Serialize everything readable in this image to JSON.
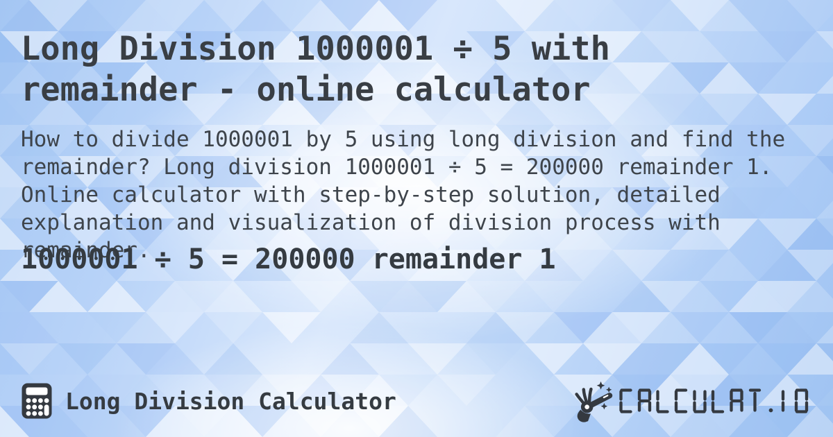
{
  "header": {
    "title": "Long Division 1000001 ÷ 5 with remainder - online calculator"
  },
  "main": {
    "description": "How to divide 1000001 by 5 using long division and find the remainder? Long division 1000001 ÷ 5 = 200000 remainder 1. Online calculator with step-by-step solution, detailed explanation and visualization of division process with remainder.",
    "result": "1000001 ÷ 5 = 200000 remainder 1"
  },
  "footer": {
    "site_label": "Long Division Calculator",
    "logo_text": "CALCULAT.IO",
    "icons": {
      "left": "calculator-icon",
      "right": "hand-magic-wand-icon"
    }
  },
  "colors": {
    "text_title": "#393e44",
    "text_body": "#3e444b",
    "text_result": "#353b41",
    "logo_dark": "#343940",
    "background_blue": "#aecdf6",
    "background_light": "#ffffff"
  }
}
